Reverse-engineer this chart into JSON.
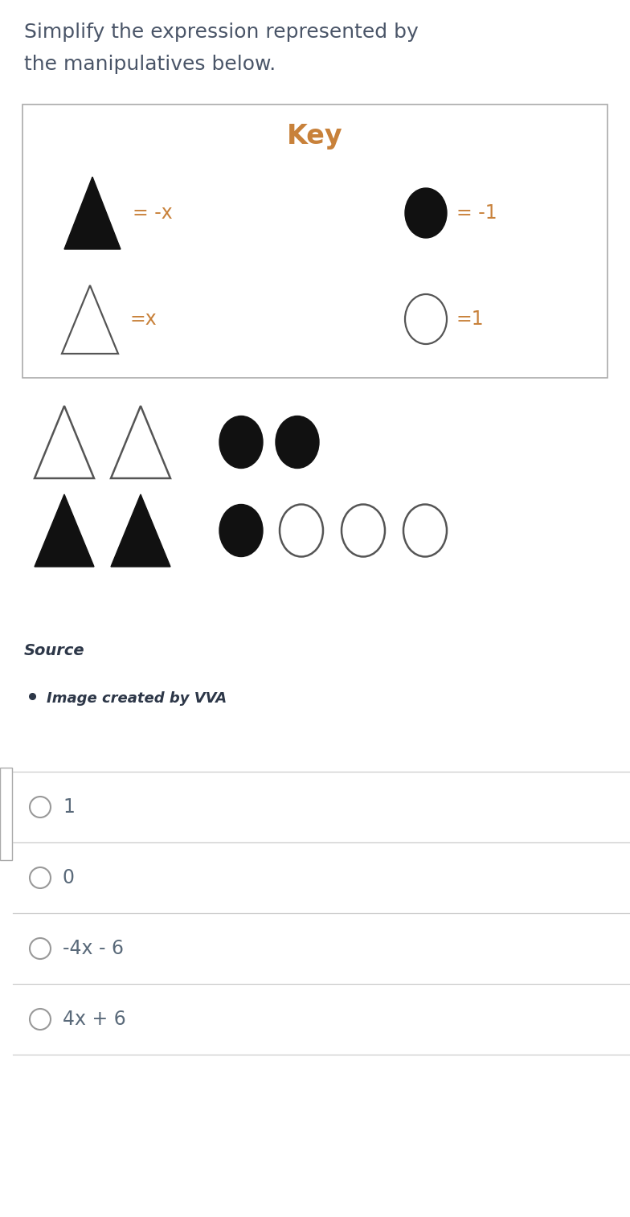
{
  "title_line1": "Simplify the expression represented by",
  "title_line2": "the manipulatives below.",
  "title_color": "#4a5568",
  "title_fontsize": 18,
  "key_title": "Key",
  "key_color": "#c8813a",
  "key_fontsize": 24,
  "label_color": "#c8813a",
  "label_fontsize": 17,
  "source_text": "Source",
  "source_bullet": "Image created by VVA",
  "choices": [
    "1",
    "0",
    "-4x - 6",
    "4x + 6"
  ],
  "choice_color": "#5a6a7a",
  "choice_fontsize": 17,
  "bg_color": "#ffffff",
  "box_edge_color": "#aaaaaa",
  "symbol_dark": "#111111",
  "symbol_outline": "#555555",
  "divider_color": "#cccccc",
  "radio_color": "#999999"
}
